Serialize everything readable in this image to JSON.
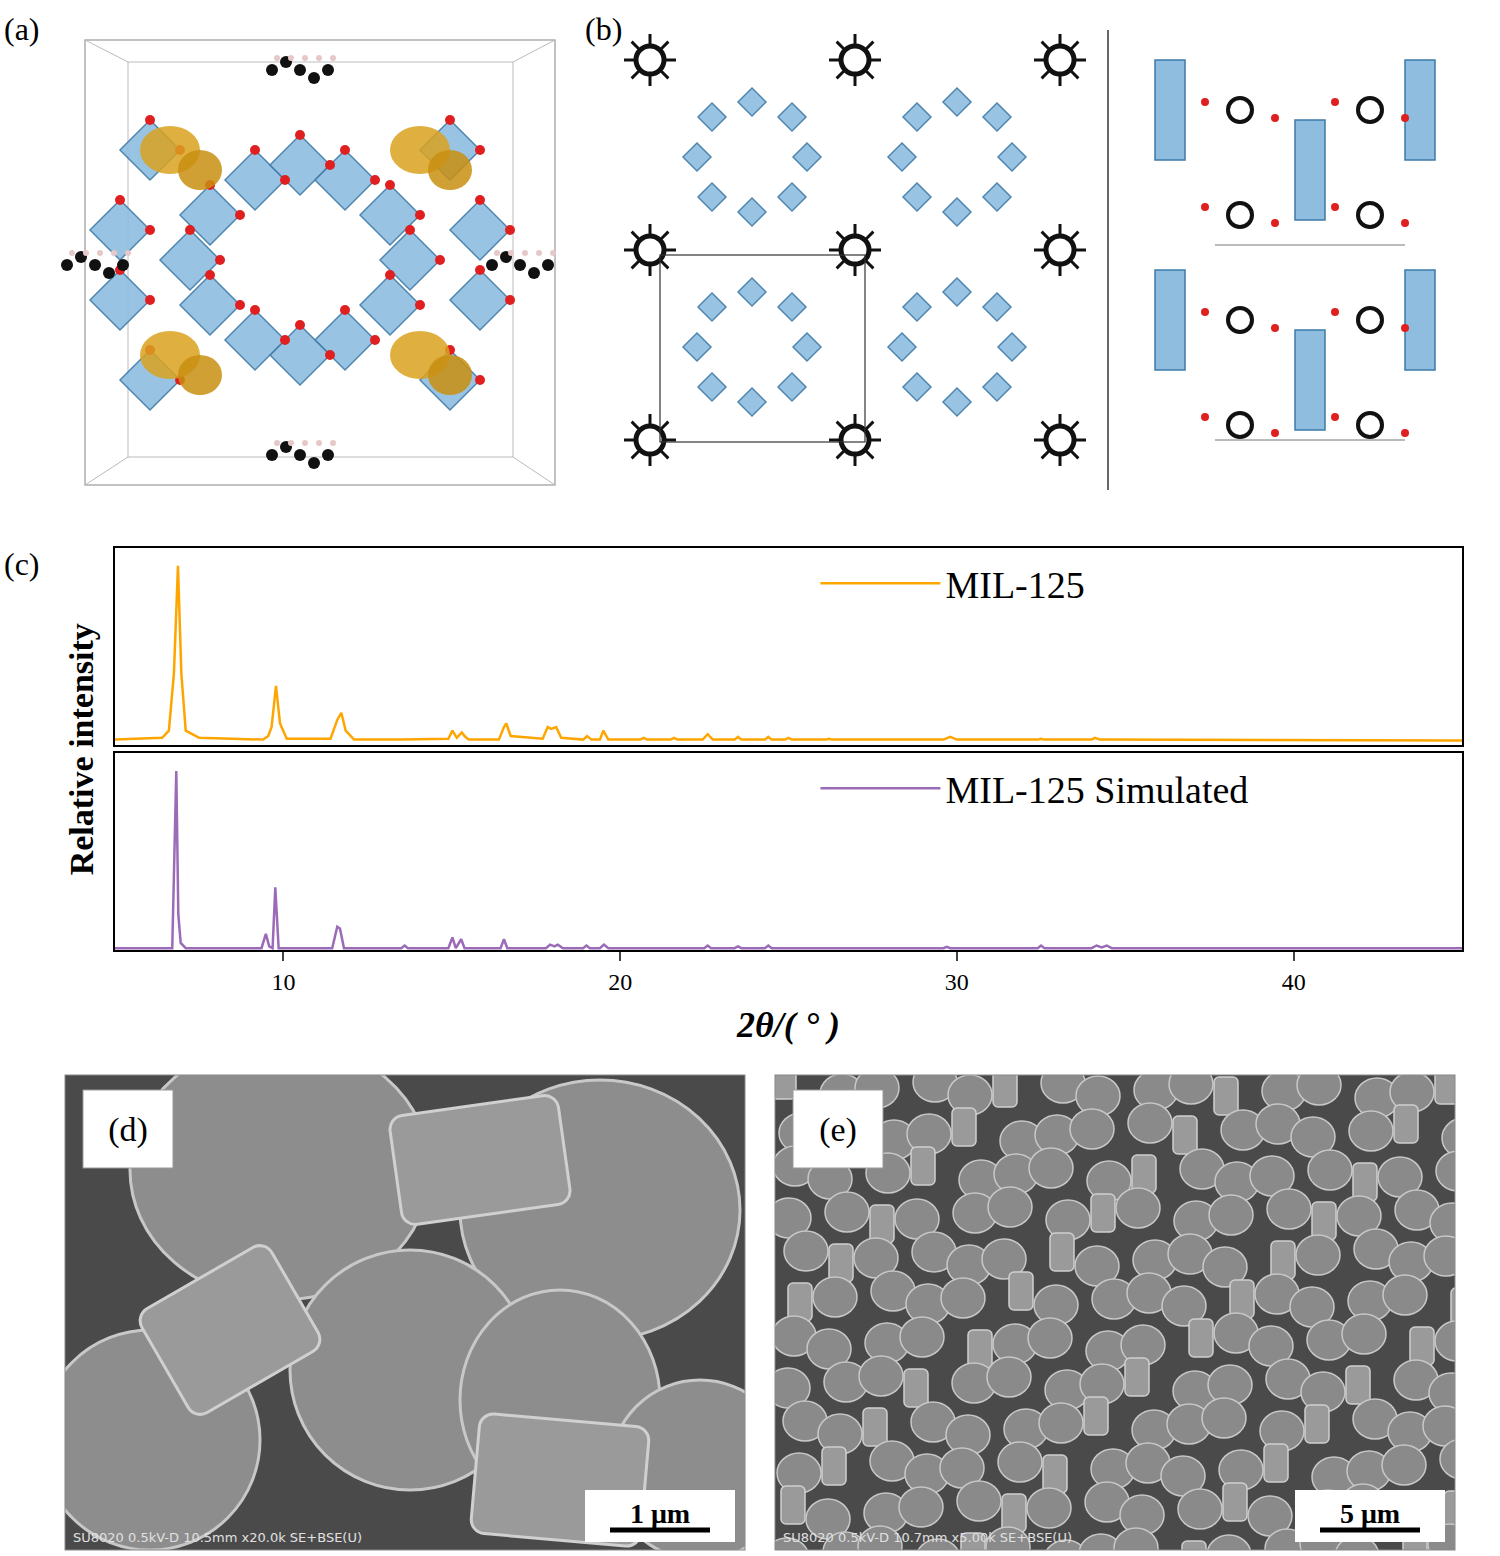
{
  "panels": [
    {
      "label": "(a)"
    },
    {
      "label": "(b)"
    },
    {
      "label": "(d)",
      "footer": "SU8020 0.5kV-D 10.5mm x20.0k SE+BSE(U)",
      "scale_bar": "1 μm"
    },
    {
      "label": "(e)",
      "footer": "SU8020 0.5kV-D 10.7mm x5.00k SE+BSE(U)",
      "scale_bar": "5 μm"
    }
  ],
  "chart_data": {
    "type": "line",
    "label": "(c)",
    "x_label": "2θ/( ° )",
    "y_label": "Relative intensity",
    "xlim": [
      5,
      45
    ],
    "xticks": [
      10,
      20,
      30,
      40
    ],
    "ylim": [
      0,
      110
    ],
    "tick_labels": "x",
    "legend": "upper right",
    "series": [
      {
        "name": "MIL-125",
        "color": "#FFA500",
        "x": [
          5,
          6.4,
          6.6,
          6.75,
          6.87,
          6.97,
          7.1,
          7.5,
          9.4,
          9.55,
          9.65,
          9.78,
          9.9,
          10.1,
          11.4,
          11.6,
          11.72,
          11.85,
          12.1,
          13.5,
          14.9,
          15.02,
          15.15,
          15.3,
          15.38,
          15.5,
          16.4,
          16.55,
          16.62,
          16.75,
          17.7,
          17.85,
          17.95,
          18.1,
          18.25,
          18.9,
          19.02,
          19.15,
          19.4,
          19.5,
          19.65,
          20.6,
          20.7,
          20.8,
          21.5,
          21.6,
          21.7,
          22.45,
          22.6,
          22.75,
          23.4,
          23.5,
          23.6,
          24.3,
          24.4,
          24.5,
          24.9,
          25.0,
          25.1,
          26.1,
          26.2,
          26.3,
          29.6,
          29.8,
          30.0,
          32.4,
          32.5,
          32.6,
          34.0,
          34.1,
          34.25,
          45
        ],
        "values": [
          3,
          4,
          8,
          40,
          100,
          40,
          8,
          4,
          3,
          5,
          10,
          33,
          12,
          3.5,
          3.5,
          14,
          18,
          8,
          3,
          3,
          3.5,
          8,
          4,
          7,
          5,
          3,
          3,
          10,
          12,
          5,
          3.5,
          10,
          9,
          10,
          4,
          3,
          5,
          3,
          3,
          8,
          3,
          3,
          4,
          3,
          3,
          4,
          3,
          3,
          6,
          3,
          3,
          4.5,
          3,
          3,
          4.5,
          3,
          3,
          4,
          3,
          3,
          3.5,
          3,
          3,
          4.5,
          3,
          3,
          3.5,
          3,
          3,
          4,
          3,
          2.5
        ]
      },
      {
        "name": "MIL-125 Simulated",
        "color": "#9B6BB8",
        "x": [
          5,
          6.7,
          6.82,
          6.88,
          6.95,
          7.1,
          9.35,
          9.48,
          9.58,
          9.68,
          9.76,
          9.86,
          11.45,
          11.6,
          11.68,
          11.8,
          13.5,
          13.6,
          13.7,
          14.9,
          15.02,
          15.12,
          15.28,
          15.38,
          15.5,
          16.45,
          16.55,
          16.65,
          17.8,
          17.92,
          18.05,
          18.15,
          18.3,
          18.9,
          19.0,
          19.1,
          19.4,
          19.52,
          19.65,
          22.5,
          22.6,
          22.7,
          23.4,
          23.5,
          23.6,
          24.3,
          24.4,
          24.5,
          29.6,
          29.7,
          29.8,
          32.4,
          32.5,
          32.6,
          34.0,
          34.15,
          34.3,
          34.45,
          34.6,
          45
        ],
        "values": [
          1,
          1,
          100,
          20,
          4,
          1,
          1,
          9,
          2,
          1,
          35,
          1,
          1,
          13,
          12,
          1,
          1,
          2.5,
          1,
          1,
          7,
          1,
          6,
          1,
          1,
          1,
          6,
          1,
          1,
          3,
          2,
          3,
          1,
          1,
          2.5,
          1,
          1,
          3,
          1,
          1,
          2.5,
          1,
          1,
          2,
          1,
          1,
          2.5,
          1,
          1,
          1.8,
          1,
          1,
          2.5,
          1,
          1,
          2.5,
          1.5,
          2.5,
          1,
          1
        ]
      }
    ]
  }
}
